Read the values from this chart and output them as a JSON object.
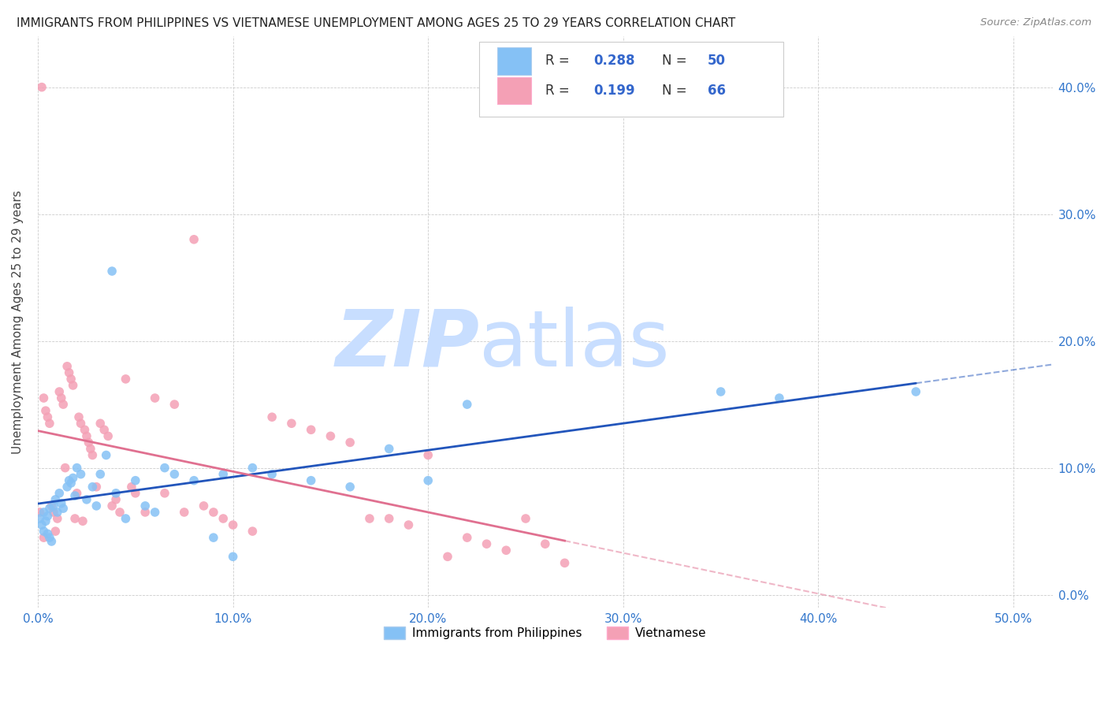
{
  "title": "IMMIGRANTS FROM PHILIPPINES VS VIETNAMESE UNEMPLOYMENT AMONG AGES 25 TO 29 YEARS CORRELATION CHART",
  "source": "Source: ZipAtlas.com",
  "ylabel": "Unemployment Among Ages 25 to 29 years",
  "xlim": [
    0.0,
    0.52
  ],
  "ylim": [
    -0.01,
    0.44
  ],
  "xticks": [
    0.0,
    0.1,
    0.2,
    0.3,
    0.4,
    0.5
  ],
  "yticks": [
    0.0,
    0.1,
    0.2,
    0.3,
    0.4
  ],
  "xticklabels": [
    "0.0%",
    "10.0%",
    "20.0%",
    "30.0%",
    "40.0%",
    "50.0%"
  ],
  "yticklabels_right": [
    "0.0%",
    "10.0%",
    "20.0%",
    "30.0%",
    "40.0%"
  ],
  "color_philippines": "#85C1F5",
  "color_vietnamese": "#F4A0B5",
  "color_line_philippines": "#2255BB",
  "color_line_vietnamese": "#E07090",
  "legend_label_philippines": "Immigrants from Philippines",
  "legend_label_vietnamese": "Vietnamese",
  "R_philippines": "0.288",
  "N_philippines": "50",
  "R_vietnamese": "0.199",
  "N_vietnamese": "66",
  "background_color": "#FFFFFF",
  "grid_color": "#CCCCCC",
  "philippines_x": [
    0.001,
    0.002,
    0.003,
    0.003,
    0.004,
    0.005,
    0.005,
    0.006,
    0.006,
    0.007,
    0.008,
    0.009,
    0.01,
    0.011,
    0.012,
    0.013,
    0.015,
    0.016,
    0.017,
    0.018,
    0.019,
    0.02,
    0.022,
    0.025,
    0.028,
    0.03,
    0.032,
    0.035,
    0.038,
    0.04,
    0.045,
    0.05,
    0.055,
    0.06,
    0.065,
    0.07,
    0.08,
    0.09,
    0.095,
    0.1,
    0.11,
    0.12,
    0.14,
    0.16,
    0.18,
    0.2,
    0.22,
    0.35,
    0.38,
    0.45
  ],
  "philippines_y": [
    0.06,
    0.055,
    0.05,
    0.065,
    0.058,
    0.048,
    0.062,
    0.045,
    0.068,
    0.042,
    0.07,
    0.075,
    0.065,
    0.08,
    0.072,
    0.068,
    0.085,
    0.09,
    0.088,
    0.092,
    0.078,
    0.1,
    0.095,
    0.075,
    0.085,
    0.07,
    0.095,
    0.11,
    0.255,
    0.08,
    0.06,
    0.09,
    0.07,
    0.065,
    0.1,
    0.095,
    0.09,
    0.045,
    0.095,
    0.03,
    0.1,
    0.095,
    0.09,
    0.085,
    0.115,
    0.09,
    0.15,
    0.16,
    0.155,
    0.16
  ],
  "vietnamese_x": [
    0.001,
    0.002,
    0.003,
    0.003,
    0.004,
    0.005,
    0.006,
    0.007,
    0.008,
    0.009,
    0.01,
    0.011,
    0.012,
    0.013,
    0.014,
    0.015,
    0.016,
    0.017,
    0.018,
    0.019,
    0.02,
    0.021,
    0.022,
    0.023,
    0.024,
    0.025,
    0.026,
    0.027,
    0.028,
    0.03,
    0.032,
    0.034,
    0.036,
    0.038,
    0.04,
    0.042,
    0.045,
    0.048,
    0.05,
    0.055,
    0.06,
    0.065,
    0.07,
    0.075,
    0.08,
    0.085,
    0.09,
    0.095,
    0.1,
    0.11,
    0.12,
    0.13,
    0.14,
    0.15,
    0.16,
    0.17,
    0.18,
    0.19,
    0.2,
    0.21,
    0.22,
    0.23,
    0.24,
    0.25,
    0.26,
    0.27
  ],
  "vietnamese_y": [
    0.065,
    0.4,
    0.155,
    0.045,
    0.145,
    0.14,
    0.135,
    0.07,
    0.065,
    0.05,
    0.06,
    0.16,
    0.155,
    0.15,
    0.1,
    0.18,
    0.175,
    0.17,
    0.165,
    0.06,
    0.08,
    0.14,
    0.135,
    0.058,
    0.13,
    0.125,
    0.12,
    0.115,
    0.11,
    0.085,
    0.135,
    0.13,
    0.125,
    0.07,
    0.075,
    0.065,
    0.17,
    0.085,
    0.08,
    0.065,
    0.155,
    0.08,
    0.15,
    0.065,
    0.28,
    0.07,
    0.065,
    0.06,
    0.055,
    0.05,
    0.14,
    0.135,
    0.13,
    0.125,
    0.12,
    0.06,
    0.06,
    0.055,
    0.11,
    0.03,
    0.045,
    0.04,
    0.035,
    0.06,
    0.04,
    0.025
  ]
}
